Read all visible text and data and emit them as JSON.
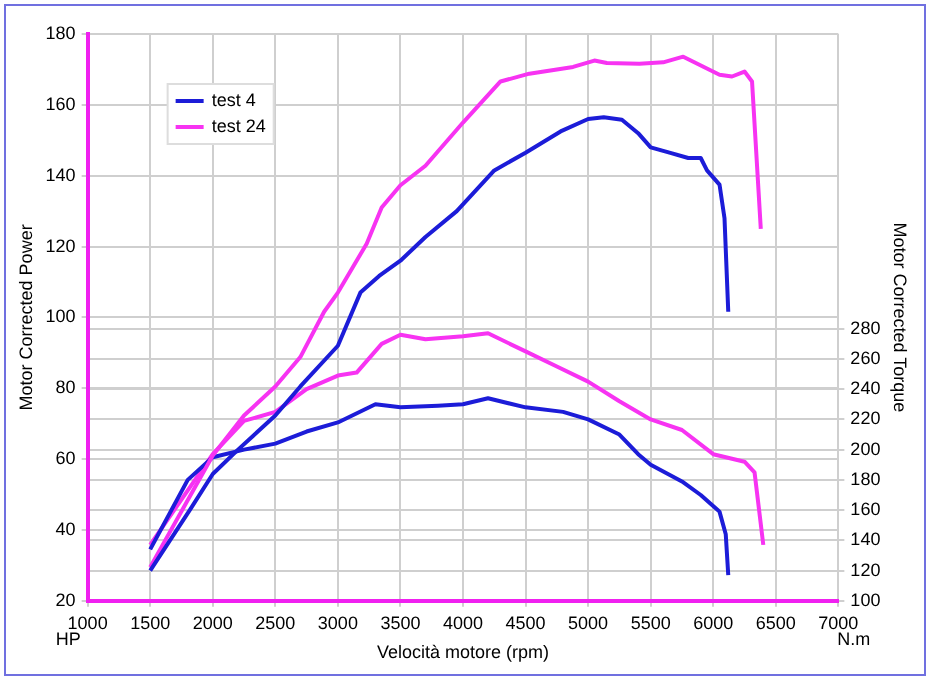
{
  "chart_data": {
    "type": "line",
    "xlabel": "Velocità motore (rpm)",
    "ylabel": "Motor Corrected Power",
    "y2label": "Motor Corrected Torque",
    "annotations": [
      "HP",
      "N.m"
    ],
    "xlim": [
      1000,
      7000
    ],
    "xticks": [
      1000,
      1500,
      2000,
      2500,
      3000,
      3500,
      4000,
      4500,
      5000,
      5500,
      6000,
      6500,
      7000
    ],
    "ylim": [
      20,
      180
    ],
    "yticks": [
      20,
      40,
      60,
      80,
      100,
      120,
      140,
      160,
      180
    ],
    "y2lim": [
      100,
      475
    ],
    "y2ticks": [
      100,
      120,
      140,
      160,
      180,
      200,
      220,
      240,
      260,
      280
    ],
    "grid": true,
    "legend": "top left",
    "line_style": "solid",
    "series": [
      {
        "name": "test 4",
        "color": "#1c1cd8",
        "x": [
          1500,
          1820,
          2000,
          2200,
          2500,
          2700,
          3000,
          3180,
          3330,
          3500,
          3700,
          3950,
          4250,
          4500,
          4780,
          5000,
          5125,
          5270,
          5400,
          5500,
          5650,
          5800,
          5900,
          5950,
          6050,
          6090,
          6120
        ],
        "values": [
          28.5,
          45.8,
          55.8,
          62.6,
          72.3,
          80.5,
          92,
          107,
          111.7,
          116,
          122.7,
          130,
          141.5,
          146.5,
          152.5,
          156,
          156.5,
          155.8,
          152,
          148,
          146.5,
          145,
          145,
          141.5,
          137.5,
          128,
          101.6
        ]
      },
      {
        "name": "test 24",
        "color": "#f733f2",
        "x": [
          1500,
          2000,
          2250,
          2500,
          2700,
          2890,
          3000,
          3230,
          3350,
          3500,
          3700,
          4000,
          4300,
          4530,
          4880,
          5050,
          5150,
          5410,
          5600,
          5760,
          6050,
          6150,
          6250,
          6310,
          6380
        ],
        "values": [
          29.5,
          61,
          72.3,
          80.5,
          88.8,
          101.6,
          107,
          120.8,
          131,
          137.3,
          142.8,
          155,
          166.6,
          168.8,
          170.7,
          172.5,
          171.8,
          171.6,
          172,
          173.6,
          168.5,
          168,
          169.4,
          166.6,
          125
        ]
      },
      {
        "color": "#1c1cd8",
        "axis": "y2",
        "x": [
          1500,
          1800,
          2000,
          2250,
          2500,
          2750,
          3000,
          3300,
          3500,
          3800,
          4000,
          4200,
          4500,
          4800,
          5000,
          5250,
          5400,
          5500,
          5750,
          5900,
          6050,
          6100,
          6120
        ],
        "values": [
          134,
          180,
          195,
          200,
          204,
          212,
          218,
          230,
          228,
          229,
          230,
          234,
          228,
          225,
          220,
          210,
          197,
          190,
          179,
          170,
          159,
          144,
          117
        ]
      },
      {
        "color": "#f733f2",
        "axis": "y2",
        "x": [
          1500,
          2000,
          2250,
          2500,
          2750,
          3000,
          3150,
          3350,
          3500,
          3700,
          4000,
          4200,
          4500,
          4750,
          5000,
          5250,
          5500,
          5750,
          6000,
          6250,
          6330,
          6400
        ],
        "values": [
          137,
          197,
          219,
          225,
          240,
          249,
          251,
          270,
          276,
          273,
          275,
          277,
          265,
          255,
          245,
          232,
          220,
          213,
          197,
          192,
          185,
          137
        ]
      }
    ]
  }
}
